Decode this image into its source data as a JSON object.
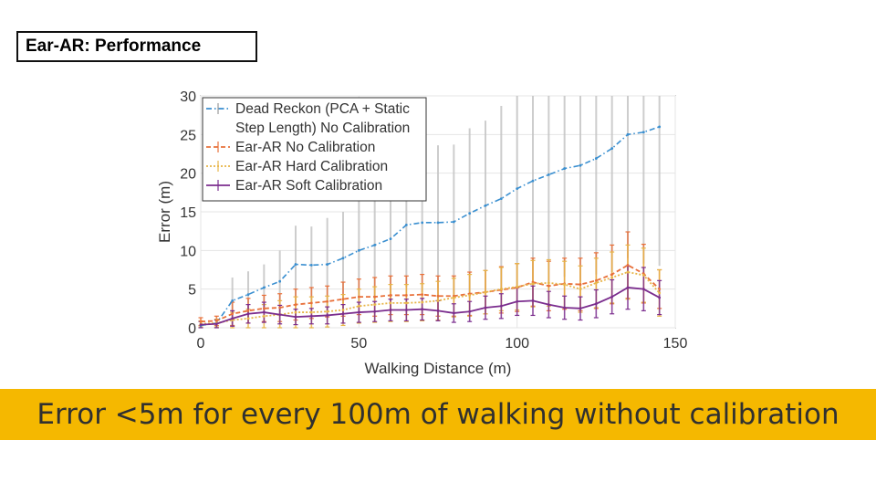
{
  "slide": {
    "title": "Ear-AR: Performance",
    "banner": "Error <5m for every 100m of walking without calibration"
  },
  "colors": {
    "banner_bg": "#f5b800",
    "dead_reckon": "#3a8fd0",
    "no_calib": "#e8703a",
    "hard_calib": "#e7b548",
    "soft_calib": "#7b2d8e"
  },
  "chart_data": {
    "type": "line",
    "xlabel": "Walking Distance (m)",
    "ylabel": "Error (m)",
    "xlim": [
      0,
      150
    ],
    "ylim": [
      0,
      30
    ],
    "xticks": [
      0,
      50,
      100,
      150
    ],
    "yticks": [
      0,
      5,
      10,
      15,
      20,
      25,
      30
    ],
    "grid": true,
    "legend_position": "top-left",
    "series": [
      {
        "name": "Dead Reckon (PCA + Static Step Length) No Calibration",
        "legend_lines": [
          "Dead Reckon (PCA + Static",
          "Step Length) No Calibration"
        ],
        "style": "dash-dot",
        "color": "#3a8fd0",
        "x": [
          0,
          5,
          10,
          15,
          20,
          25,
          30,
          35,
          40,
          45,
          50,
          55,
          60,
          65,
          70,
          75,
          80,
          85,
          90,
          95,
          100,
          105,
          110,
          115,
          120,
          125,
          130,
          135,
          140,
          145
        ],
        "y": [
          0.3,
          0.6,
          3.5,
          4.3,
          5.2,
          6.0,
          8.2,
          8.1,
          8.2,
          9.0,
          10.0,
          10.7,
          11.5,
          13.3,
          13.6,
          13.6,
          13.7,
          14.8,
          15.8,
          16.7,
          18.0,
          19.0,
          19.8,
          20.6,
          21.0,
          21.9,
          23.2,
          25.0,
          25.3,
          26.0
        ],
        "err": [
          0.3,
          0.5,
          3,
          3,
          3,
          4,
          5,
          5,
          6,
          6,
          7,
          7,
          8,
          8,
          9,
          10,
          10,
          11,
          11,
          12,
          13,
          13,
          14,
          14,
          15,
          15,
          16,
          16,
          17,
          18
        ]
      },
      {
        "name": "Ear-AR No Calibration",
        "style": "dashed",
        "color": "#e8703a",
        "x": [
          0,
          5,
          10,
          15,
          20,
          25,
          30,
          35,
          40,
          45,
          50,
          55,
          60,
          65,
          70,
          75,
          80,
          85,
          90,
          95,
          100,
          105,
          110,
          115,
          120,
          125,
          130,
          135,
          140,
          145
        ],
        "y": [
          0.8,
          0.9,
          1.8,
          2.2,
          2.5,
          2.6,
          3.0,
          3.2,
          3.4,
          3.7,
          4.0,
          4.0,
          4.2,
          4.2,
          4.3,
          4.1,
          4.1,
          4.4,
          4.6,
          4.9,
          5.2,
          5.9,
          5.4,
          5.7,
          5.6,
          6.1,
          6.9,
          8.1,
          7.0,
          5.0
        ],
        "err": [
          0.5,
          0.6,
          1.5,
          1.6,
          1.7,
          1.8,
          2.0,
          2.0,
          2.0,
          2.2,
          2.3,
          2.5,
          2.5,
          2.5,
          2.6,
          2.6,
          2.6,
          2.8,
          2.8,
          3.0,
          3.1,
          3.1,
          3.2,
          3.3,
          3.4,
          3.6,
          3.8,
          4.3,
          3.8,
          2.5
        ]
      },
      {
        "name": "Ear-AR Hard Calibration",
        "style": "dotted",
        "color": "#e7b548",
        "x": [
          0,
          5,
          10,
          15,
          20,
          25,
          30,
          35,
          40,
          45,
          50,
          55,
          60,
          65,
          70,
          75,
          80,
          85,
          90,
          95,
          100,
          105,
          110,
          115,
          120,
          125,
          130,
          135,
          140,
          145
        ],
        "y": [
          0.5,
          0.6,
          1.0,
          1.2,
          1.5,
          1.7,
          2.0,
          2.0,
          2.1,
          2.3,
          2.8,
          3.0,
          3.2,
          3.2,
          3.3,
          3.5,
          3.9,
          4.2,
          4.6,
          5.0,
          5.3,
          5.7,
          5.8,
          5.6,
          5.0,
          5.8,
          6.5,
          7.2,
          6.8,
          4.5
        ],
        "err": [
          0.4,
          0.5,
          1.0,
          1.2,
          1.5,
          1.8,
          2.0,
          2.0,
          2.0,
          2.0,
          2.2,
          2.3,
          2.4,
          2.4,
          2.4,
          2.5,
          2.5,
          2.7,
          2.8,
          2.8,
          3.0,
          3.0,
          3.0,
          3.0,
          3.0,
          3.2,
          3.3,
          3.5,
          3.5,
          3.0
        ]
      },
      {
        "name": "Ear-AR Soft Calibration",
        "style": "solid",
        "color": "#7b2d8e",
        "x": [
          0,
          5,
          10,
          15,
          20,
          25,
          30,
          35,
          40,
          45,
          50,
          55,
          60,
          65,
          70,
          75,
          80,
          85,
          90,
          95,
          100,
          105,
          110,
          115,
          120,
          125,
          130,
          135,
          140,
          145
        ],
        "y": [
          0.4,
          0.5,
          1.2,
          1.8,
          2.0,
          1.7,
          1.4,
          1.5,
          1.6,
          1.8,
          2.0,
          2.1,
          2.3,
          2.3,
          2.4,
          2.2,
          1.9,
          2.1,
          2.6,
          2.8,
          3.4,
          3.5,
          3.0,
          2.6,
          2.5,
          3.1,
          4.0,
          5.2,
          5.0,
          3.9
        ],
        "err": [
          0.4,
          0.5,
          1.0,
          1.2,
          1.3,
          1.2,
          1.0,
          1.0,
          1.1,
          1.2,
          1.3,
          1.3,
          1.4,
          1.4,
          1.4,
          1.3,
          1.2,
          1.3,
          1.5,
          1.6,
          1.8,
          1.9,
          1.7,
          1.5,
          1.5,
          1.8,
          2.2,
          2.8,
          2.8,
          2.2
        ]
      }
    ]
  }
}
